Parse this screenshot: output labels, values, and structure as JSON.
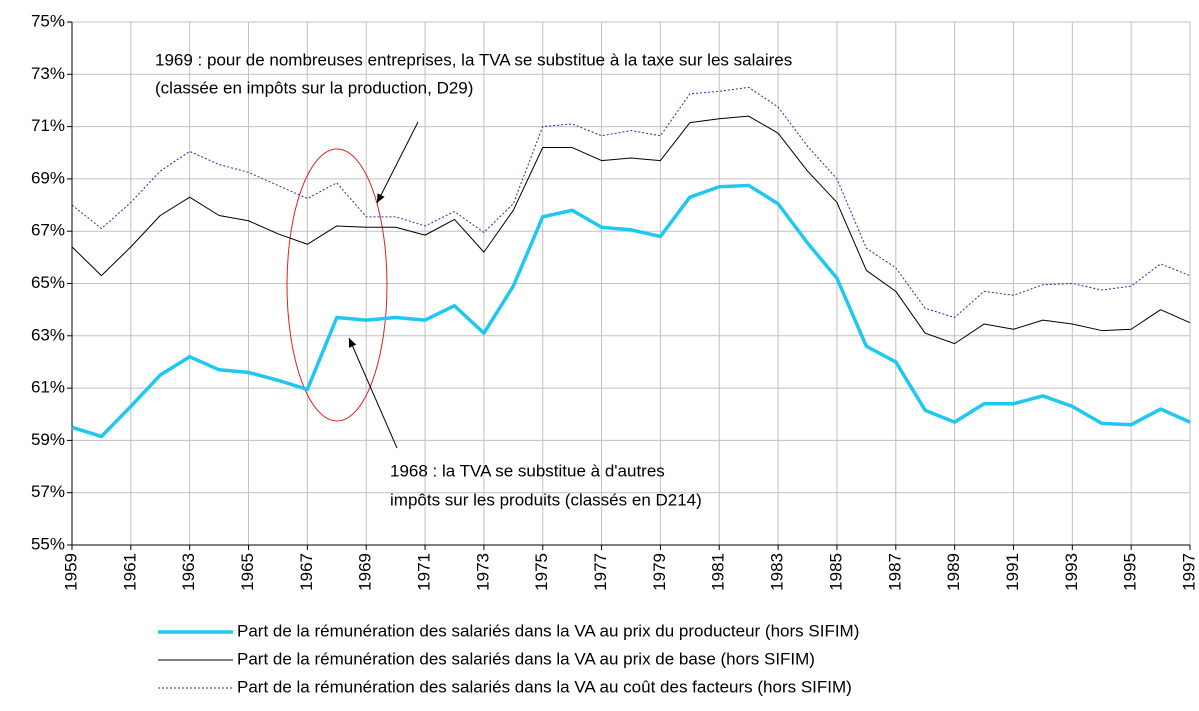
{
  "chart_data": {
    "type": "line",
    "x": [
      1959,
      1960,
      1961,
      1962,
      1963,
      1964,
      1965,
      1966,
      1967,
      1968,
      1969,
      1970,
      1971,
      1972,
      1973,
      1974,
      1975,
      1976,
      1977,
      1978,
      1979,
      1980,
      1981,
      1982,
      1983,
      1984,
      1985,
      1986,
      1987,
      1988,
      1989,
      1990,
      1991,
      1992,
      1993,
      1994,
      1995,
      1996,
      1997
    ],
    "xlim": [
      1959,
      1997
    ],
    "xticks": [
      1959,
      1961,
      1963,
      1965,
      1967,
      1969,
      1971,
      1973,
      1975,
      1977,
      1979,
      1981,
      1983,
      1985,
      1987,
      1989,
      1991,
      1993,
      1995,
      1997
    ],
    "ylim": [
      55,
      75
    ],
    "yticks": [
      {
        "value": 55,
        "label": "55%"
      },
      {
        "value": 57,
        "label": "57%"
      },
      {
        "value": 59,
        "label": "59%"
      },
      {
        "value": 61,
        "label": "61%"
      },
      {
        "value": 63,
        "label": "63%"
      },
      {
        "value": 65,
        "label": "65%"
      },
      {
        "value": 67,
        "label": "67%"
      },
      {
        "value": 69,
        "label": "69%"
      },
      {
        "value": 71,
        "label": "71%"
      },
      {
        "value": 73,
        "label": "73%"
      },
      {
        "value": 75,
        "label": "75%"
      }
    ],
    "grid": true,
    "series": [
      {
        "name": "Part de la rémunération des salariés dans la VA au prix du producteur (hors SIFIM)",
        "color": "#1ec8f0",
        "values": [
          59.5,
          59.15,
          60.3,
          61.5,
          62.2,
          61.7,
          61.6,
          61.3,
          60.95,
          63.7,
          63.6,
          63.7,
          63.6,
          64.15,
          63.1,
          64.9,
          67.55,
          67.8,
          67.15,
          67.05,
          66.8,
          68.3,
          68.7,
          68.75,
          68.05,
          66.55,
          65.2,
          62.6,
          62.0,
          60.15,
          59.7,
          60.4,
          60.4,
          60.7,
          60.3,
          59.65,
          59.6,
          60.2,
          59.7
        ]
      },
      {
        "name": "Part de la rémunération des salariés dans la VA au prix de base (hors SIFIM)",
        "color": "#000000",
        "values": [
          66.4,
          65.3,
          66.4,
          67.6,
          68.3,
          67.6,
          67.4,
          66.9,
          66.5,
          67.2,
          67.15,
          67.15,
          66.85,
          67.45,
          66.2,
          67.8,
          70.2,
          70.2,
          69.7,
          69.8,
          69.7,
          71.15,
          71.3,
          71.4,
          70.75,
          69.3,
          68.1,
          65.5,
          64.7,
          63.1,
          62.7,
          63.45,
          63.25,
          63.6,
          63.45,
          63.2,
          63.25,
          64.0,
          63.5
        ]
      },
      {
        "name": "Part de la rémunération des salariés dans la VA au coût des facteurs (hors SIFIM)",
        "color": "#2b2b9c",
        "values": [
          68.0,
          67.1,
          68.1,
          69.3,
          70.05,
          69.55,
          69.25,
          68.75,
          68.25,
          68.85,
          67.55,
          67.55,
          67.2,
          67.75,
          66.95,
          68.05,
          71.0,
          71.1,
          70.65,
          70.85,
          70.65,
          72.25,
          72.35,
          72.5,
          71.75,
          70.25,
          69.0,
          66.35,
          65.6,
          64.05,
          63.7,
          64.7,
          64.55,
          64.95,
          65.0,
          64.75,
          64.9,
          65.75,
          65.3
        ]
      }
    ],
    "annotations": [
      [
        "1969 : pour de nombreuses entreprises, la TVA se substitue à la taxe sur les salaires",
        "(classée en impôts sur la production, D29)"
      ],
      [
        "1968 : la TVA se substitue à d'autres",
        "impôts sur les produits (classés en D214)"
      ]
    ]
  }
}
